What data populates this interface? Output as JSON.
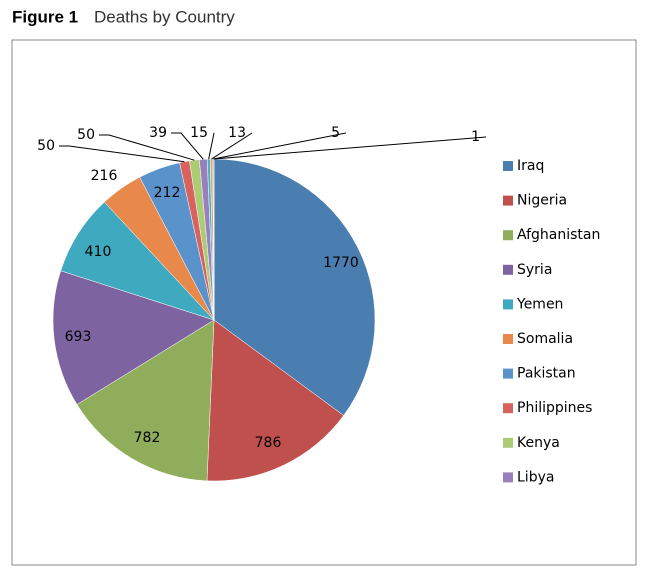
{
  "chart_data": {
    "type": "pie",
    "figure_label": "Figure 1",
    "title": "Deaths by Country",
    "categories": [
      "Iraq",
      "Nigeria",
      "Afghanistan",
      "Syria",
      "Yemen",
      "Somalia",
      "Pakistan",
      "Philippines",
      "Kenya",
      "Libya",
      null,
      null,
      null,
      null
    ],
    "values": [
      1770,
      786,
      782,
      693,
      410,
      216,
      212,
      50,
      50,
      39,
      15,
      13,
      5,
      1
    ],
    "colors": [
      "#4a7eb1",
      "#c0504d",
      "#8fad5a",
      "#7d64a0",
      "#3fa9c0",
      "#e8884a",
      "#5a92cc",
      "#d9625f",
      "#a9cc75",
      "#9a7fbd",
      "#3fb6c9",
      "#f0a060",
      "#6a9fd8",
      "#c05050"
    ],
    "legend": "right"
  }
}
